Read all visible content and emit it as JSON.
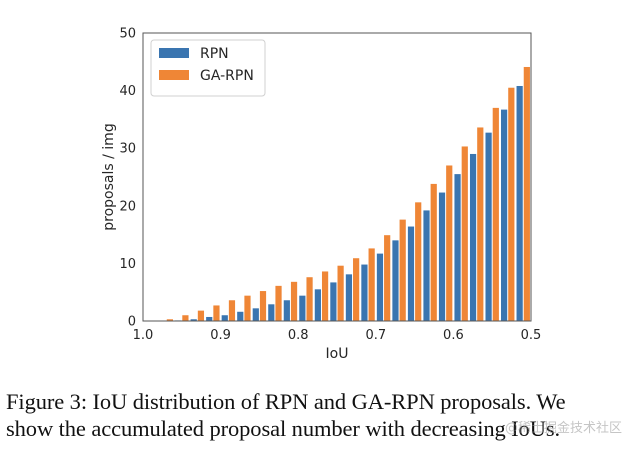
{
  "chart_data": {
    "type": "bar",
    "title": "",
    "xlabel": "IoU",
    "ylabel": "proposals / img",
    "xlim": [
      1.0,
      0.5
    ],
    "ylim": [
      0,
      50
    ],
    "x_ticks": [
      "1.0",
      "0.9",
      "0.8",
      "0.7",
      "0.6",
      "0.5"
    ],
    "x_tick_values": [
      1.0,
      0.9,
      0.8,
      0.7,
      0.6,
      0.5
    ],
    "y_ticks": [
      "0",
      "10",
      "20",
      "30",
      "40",
      "50"
    ],
    "y_tick_values": [
      0,
      10,
      20,
      30,
      40,
      50
    ],
    "grid": false,
    "legend_position": "top-left",
    "x": [
      0.97,
      0.95,
      0.93,
      0.91,
      0.89,
      0.87,
      0.85,
      0.83,
      0.81,
      0.79,
      0.77,
      0.75,
      0.73,
      0.71,
      0.69,
      0.67,
      0.65,
      0.63,
      0.61,
      0.59,
      0.57,
      0.55,
      0.53,
      0.51
    ],
    "series": [
      {
        "name": "RPN",
        "color": "#3a75b0",
        "values": [
          0.0,
          0.1,
          0.3,
          0.7,
          1.0,
          1.6,
          2.2,
          2.9,
          3.6,
          4.4,
          5.5,
          6.7,
          8.1,
          9.8,
          11.7,
          14.0,
          16.4,
          19.2,
          22.3,
          25.5,
          29.0,
          32.7,
          36.7,
          40.8
        ]
      },
      {
        "name": "GA-RPN",
        "color": "#ef8636",
        "values": [
          0.3,
          1.0,
          1.8,
          2.7,
          3.6,
          4.4,
          5.2,
          6.1,
          6.8,
          7.6,
          8.6,
          9.6,
          10.9,
          12.6,
          14.9,
          17.6,
          20.6,
          23.8,
          27.0,
          30.3,
          33.6,
          37.0,
          40.5,
          44.1
        ]
      }
    ]
  },
  "caption": {
    "line1": "Figure 3:  IoU distribution of RPN and GA-RPN proposals.  We",
    "line2": "show the accumulated proposal number with decreasing IoUs."
  },
  "watermark": "@稀土掘金技术社区"
}
